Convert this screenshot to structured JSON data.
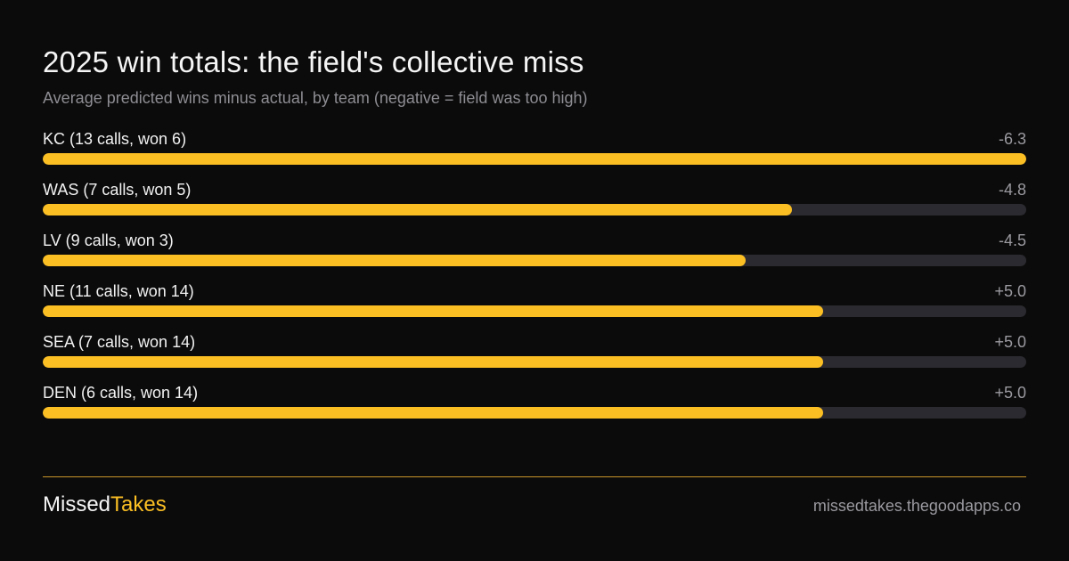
{
  "header": {
    "title": "2025 win totals: the field's collective miss",
    "subtitle": "Average predicted wins minus actual, by team (negative = field was too high)"
  },
  "chart_data": {
    "type": "bar",
    "orientation": "horizontal",
    "title": "2025 win totals: the field's collective miss",
    "subtitle": "Average predicted wins minus actual, by team (negative = field was too high)",
    "scale_max_abs": 6.3,
    "categories": [
      "KC (13 calls, won 6)",
      "WAS (7 calls, won 5)",
      "LV (9 calls, won 3)",
      "NE (11 calls, won 14)",
      "SEA (7 calls, won 14)",
      "DEN (6 calls, won 14)"
    ],
    "values": [
      -6.3,
      -4.8,
      -4.5,
      5.0,
      5.0,
      5.0
    ],
    "value_labels": [
      "-6.3",
      "-4.8",
      "-4.5",
      "+5.0",
      "+5.0",
      "+5.0"
    ],
    "grid": false,
    "legend": "none"
  },
  "colors": {
    "background": "#0b0b0b",
    "bar_fill": "#fbbf24",
    "bar_track": "#2b2a30",
    "divider": "#c9952a",
    "muted_text": "#9a9aa0"
  },
  "footer": {
    "brand_primary": "Missed",
    "brand_accent": "Takes",
    "site": "missedtakes.thegoodapps.co"
  }
}
